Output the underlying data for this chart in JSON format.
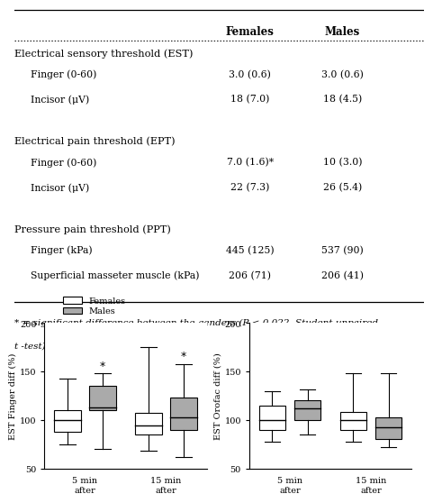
{
  "table": {
    "title_row": [
      "",
      "Females",
      "Males"
    ],
    "sections": [
      {
        "header": "Electrical sensory threshold (EST)",
        "rows": [
          [
            "Finger (0-60)",
            "3.0 (0.6)",
            "3.0 (0.6)"
          ],
          [
            "Incisor (μV)",
            "18 (7.0)",
            "18 (4.5)"
          ]
        ]
      },
      {
        "header": "Electrical pain threshold (EPT)",
        "rows": [
          [
            "Finger (0-60)",
            "7.0 (1.6)*",
            "10 (3.0)"
          ],
          [
            "Incisor (μV)",
            "22 (7.3)",
            "26 (5.4)"
          ]
        ]
      },
      {
        "header": "Pressure pain threshold (PPT)",
        "rows": [
          [
            "Finger (kPa)",
            "445 (125)",
            "537 (90)"
          ],
          [
            "Superficial masseter muscle (kPa)",
            "206 (71)",
            "206 (41)"
          ]
        ]
      }
    ],
    "footnote_line1": "* = significant difference between the genders (P < 0.022, Student-unpaired",
    "footnote_line2": "t -test)."
  },
  "boxplots": {
    "left": {
      "ylabel": "EST Finger diff (%)",
      "ylim": [
        50,
        200
      ],
      "yticks": [
        50,
        100,
        150,
        200
      ],
      "groups": [
        "5 min\nafter",
        "15 min\nafter"
      ],
      "females": {
        "5min": {
          "q1": 88,
          "median": 100,
          "q3": 110,
          "whislo": 75,
          "whishi": 143
        },
        "15min": {
          "q1": 85,
          "median": 94,
          "q3": 107,
          "whislo": 68,
          "whishi": 175
        }
      },
      "males": {
        "5min": {
          "q1": 110,
          "median": 113,
          "q3": 135,
          "whislo": 70,
          "whishi": 148
        },
        "15min": {
          "q1": 90,
          "median": 103,
          "q3": 123,
          "whislo": 62,
          "whishi": 158
        }
      },
      "stars": {
        "5min_males": true,
        "15min_males": true
      }
    },
    "right": {
      "ylabel": "EST Orofac diff (%)",
      "ylim": [
        50,
        200
      ],
      "yticks": [
        50,
        100,
        150,
        200
      ],
      "groups": [
        "5 min\nafter",
        "15 min\nafter"
      ],
      "females": {
        "5min": {
          "q1": 90,
          "median": 100,
          "q3": 115,
          "whislo": 78,
          "whishi": 130
        },
        "15min": {
          "q1": 90,
          "median": 100,
          "q3": 108,
          "whislo": 78,
          "whishi": 148
        }
      },
      "males": {
        "5min": {
          "q1": 100,
          "median": 112,
          "q3": 120,
          "whislo": 85,
          "whishi": 132
        },
        "15min": {
          "q1": 80,
          "median": 92,
          "q3": 103,
          "whislo": 72,
          "whishi": 148
        }
      },
      "stars": {}
    }
  },
  "colors": {
    "female_box": "#ffffff",
    "male_box": "#aaaaaa",
    "box_edge": "#000000",
    "background": "#ffffff"
  },
  "legend": {
    "females_label": "Females",
    "males_label": "Males"
  }
}
